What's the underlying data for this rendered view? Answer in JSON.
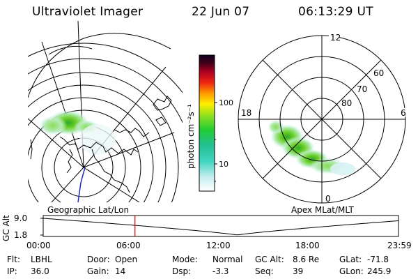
{
  "header": {
    "instrument": "Ultraviolet Imager",
    "date": "22 Jun 07",
    "time": "06:13:29 UT"
  },
  "colorbar": {
    "axis_label": "photon cm⁻²s⁻¹",
    "ticks": [
      "100",
      "10"
    ],
    "scale": "log"
  },
  "left_map": {
    "caption": "Geographic Lat/Lon",
    "projection": "geographic"
  },
  "right_map": {
    "caption": "Apex MLat/MLT",
    "mlt_labels": {
      "top": "12",
      "left": "18",
      "right": "6",
      "bottom": "0"
    },
    "lat_labels": [
      "60",
      "70",
      "80"
    ]
  },
  "timeline": {
    "axis_title": "GC Alt",
    "y_ticks": [
      "9.0",
      "1.8"
    ],
    "x_ticks": [
      "00:00",
      "06:00",
      "12:00",
      "18:00",
      "23:59"
    ],
    "cursor_hours": 6.2
  },
  "status": {
    "row1": [
      {
        "key": "Flt:",
        "value": "LBHL"
      },
      {
        "key": "Door:",
        "value": "Open"
      },
      {
        "key": "Mode:",
        "value": "Normal"
      },
      {
        "key": "GC Alt:",
        "value": "8.6 Re"
      },
      {
        "key": "GLat:",
        "value": "-71.8"
      }
    ],
    "row2": [
      {
        "key": "IP:",
        "value": "36.0"
      },
      {
        "key": "Gain:",
        "value": "14"
      },
      {
        "key": "Dsp:",
        "value": "-3.3"
      },
      {
        "key": "Seq:",
        "value": "39"
      },
      {
        "key": "GLon:",
        "value": "245.9"
      }
    ]
  },
  "colors": {
    "cursor": "#dd0000",
    "altitude_curve": "#000000",
    "emission_low": "#88d8d8",
    "emission_high": "#66cc22"
  }
}
